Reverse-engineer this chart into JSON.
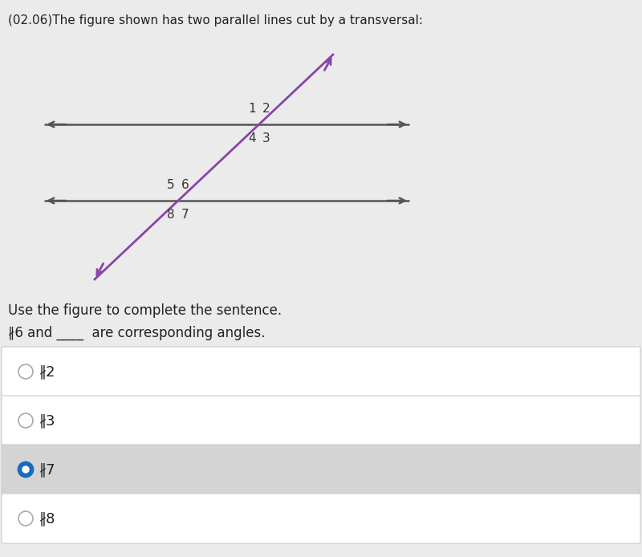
{
  "title": "(02.06)The figure shown has two parallel lines cut by a transversal:",
  "bg_color": "#ebebeb",
  "line_color": "#555555",
  "transversal_color": "#8844aa",
  "question_text": "Use the figure to complete the sentence.",
  "fill_sentence": "∦6 and ____  are corresponding angles.",
  "options_labels": [
    "∦2",
    "∦3",
    "∦7",
    "∦8"
  ],
  "selected_idx": 2,
  "option_bg_selected": "#d4d4d4",
  "option_bg_normal": "#ffffff",
  "option_border_color": "#cccccc",
  "radio_selected_color": "#1a6bbf",
  "radio_unselected_color": "#aaaaaa",
  "label_fontsize": 11,
  "title_fontsize": 11,
  "question_fontsize": 12,
  "option_fontsize": 13
}
